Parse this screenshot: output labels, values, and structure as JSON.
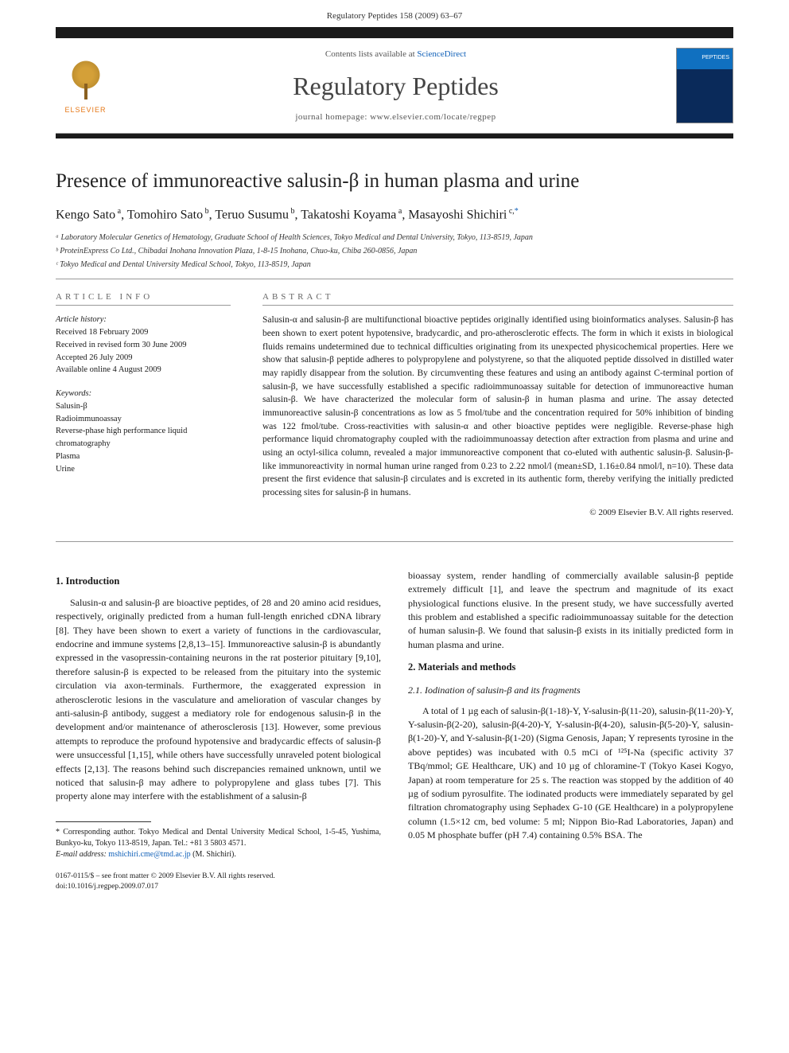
{
  "header": {
    "running": "Regulatory Peptides 158 (2009) 63–67"
  },
  "masthead": {
    "contents_prefix": "Contents lists available at ",
    "contents_link": "ScienceDirect",
    "journal": "Regulatory Peptides",
    "homepage": "journal homepage: www.elsevier.com/locate/regpep",
    "publisher": "ELSEVIER"
  },
  "article": {
    "title": "Presence of immunoreactive salusin-β in human plasma and urine",
    "authors_html": "Kengo Sato ᵃ, Tomohiro Sato ᵇ, Teruo Susumu ᵇ, Takatoshi Koyama ᵃ, Masayoshi Shichiri ᶜ,*",
    "affiliations": [
      "ᵃ Laboratory Molecular Genetics of Hematology, Graduate School of Health Sciences, Tokyo Medical and Dental University, Tokyo, 113-8519, Japan",
      "ᵇ ProteinExpress Co Ltd., Chibadai Inohana Innovation Plaza, 1-8-15 Inohana, Chuo-ku, Chiba 260-0856, Japan",
      "ᶜ Tokyo Medical and Dental University Medical School, Tokyo, 113-8519, Japan"
    ]
  },
  "info": {
    "heading": "ARTICLE INFO",
    "history_label": "Article history:",
    "history": [
      "Received 18 February 2009",
      "Received in revised form 30 June 2009",
      "Accepted 26 July 2009",
      "Available online 4 August 2009"
    ],
    "keywords_label": "Keywords:",
    "keywords": [
      "Salusin-β",
      "Radioimmunoassay",
      "Reverse-phase high performance liquid chromatography",
      "Plasma",
      "Urine"
    ]
  },
  "abstract": {
    "heading": "ABSTRACT",
    "text": "Salusin-α and salusin-β are multifunctional bioactive peptides originally identified using bioinformatics analyses. Salusin-β has been shown to exert potent hypotensive, bradycardic, and pro-atherosclerotic effects. The form in which it exists in biological fluids remains undetermined due to technical difficulties originating from its unexpected physicochemical properties. Here we show that salusin-β peptide adheres to polypropylene and polystyrene, so that the aliquoted peptide dissolved in distilled water may rapidly disappear from the solution. By circumventing these features and using an antibody against C-terminal portion of salusin-β, we have successfully established a specific radioimmunoassay suitable for detection of immunoreactive human salusin-β. We have characterized the molecular form of salusin-β in human plasma and urine. The assay detected immunoreactive salusin-β concentrations as low as 5 fmol/tube and the concentration required for 50% inhibition of binding was 122 fmol/tube. Cross-reactivities with salusin-α and other bioactive peptides were negligible. Reverse-phase high performance liquid chromatography coupled with the radioimmunoassay detection after extraction from plasma and urine and using an octyl-silica column, revealed a major immunoreactive component that co-eluted with authentic salusin-β. Salusin-β-like immunoreactivity in normal human urine ranged from 0.23 to 2.22 nmol/l (mean±SD, 1.16±0.84 nmol/l, n=10). These data present the first evidence that salusin-β circulates and is excreted in its authentic form, thereby verifying the initially predicted processing sites for salusin-β in humans.",
    "copyright": "© 2009 Elsevier B.V. All rights reserved."
  },
  "body": {
    "s1_head": "1. Introduction",
    "s1_p1": "Salusin-α and salusin-β are bioactive peptides, of 28 and 20 amino acid residues, respectively, originally predicted from a human full-length enriched cDNA library [8]. They have been shown to exert a variety of functions in the cardiovascular, endocrine and immune systems [2,8,13–15]. Immunoreactive salusin-β is abundantly expressed in the vasopressin-containing neurons in the rat posterior pituitary [9,10], therefore salusin-β is expected to be released from the pituitary into the systemic circulation via axon-terminals. Furthermore, the exaggerated expression in atherosclerotic lesions in the vasculature and amelioration of vascular changes by anti-salusin-β antibody, suggest a mediatory role for endogenous salusin-β in the development and/or maintenance of atherosclerosis [13]. However, some previous attempts to reproduce the profound hypotensive and bradycardic effects of salusin-β were unsuccessful [1,15], while others have successfully unraveled potent biological effects [2,13]. The reasons behind such discrepancies remained unknown, until we noticed that salusin-β may adhere to polypropylene and glass tubes [7]. This property alone may interfere with the establishment of a salusin-β",
    "s1_p2": "bioassay system, render handling of commercially available salusin-β peptide extremely difficult [1], and leave the spectrum and magnitude of its exact physiological functions elusive. In the present study, we have successfully averted this problem and established a specific radioimmunoassay suitable for the detection of human salusin-β. We found that salusin-β exists in its initially predicted form in human plasma and urine.",
    "s2_head": "2. Materials and methods",
    "s2_1_head": "2.1. Iodination of salusin-β and its fragments",
    "s2_1_p1": "A total of 1 µg each of salusin-β(1-18)-Y, Y-salusin-β(11-20), salusin-β(11-20)-Y, Y-salusin-β(2-20), salusin-β(4-20)-Y, Y-salusin-β(4-20), salusin-β(5-20)-Y, salusin-β(1-20)-Y, and Y-salusin-β(1-20) (Sigma Genosis, Japan; Y represents tyrosine in the above peptides) was incubated with 0.5 mCi of ¹²⁵I-Na (specific activity 37 TBq/mmol; GE Healthcare, UK) and 10 µg of chloramine-T (Tokyo Kasei Kogyo, Japan) at room temperature for 25 s. The reaction was stopped by the addition of 40 µg of sodium pyrosulfite. The iodinated products were immediately separated by gel filtration chromatography using Sephadex G-10 (GE Healthcare) in a polypropylene column (1.5×12 cm, bed volume: 5 ml; Nippon Bio-Rad Laboratories, Japan) and 0.05 M phosphate buffer (pH 7.4) containing 0.5% BSA. The"
  },
  "footnote": {
    "corr": "* Corresponding author. Tokyo Medical and Dental University Medical School, 1-5-45, Yushima, Bunkyo-ku, Tokyo 113-8519, Japan. Tel.: +81 3 5803 4571.",
    "email_label": "E-mail address: ",
    "email": "mshichiri.cme@tmd.ac.jp",
    "email_suffix": " (M. Shichiri)."
  },
  "bottom": {
    "issn": "0167-0115/$ – see front matter © 2009 Elsevier B.V. All rights reserved.",
    "doi": "doi:10.1016/j.regpep.2009.07.017"
  }
}
